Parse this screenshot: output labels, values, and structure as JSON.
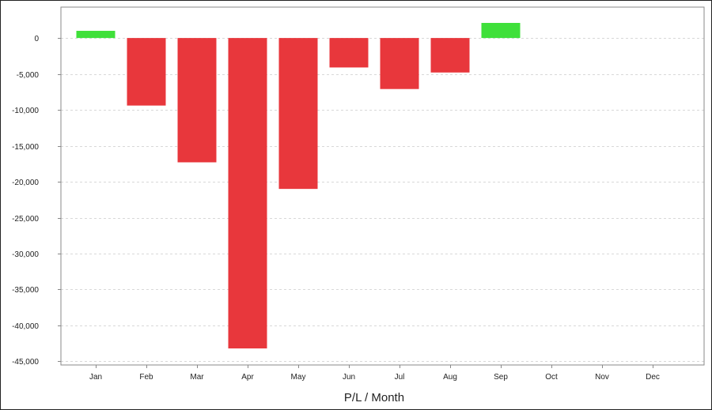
{
  "chart_data": {
    "type": "bar",
    "title": "",
    "xlabel": "P/L / Month",
    "ylabel": "",
    "categories": [
      "Jan",
      "Feb",
      "Mar",
      "Apr",
      "May",
      "Jun",
      "Jul",
      "Aug",
      "Sep",
      "Oct",
      "Nov",
      "Dec"
    ],
    "values": [
      1000,
      -9400,
      -17300,
      -43200,
      -21000,
      -4100,
      -7100,
      -4800,
      2100,
      null,
      null,
      null
    ],
    "ylim": [
      -45500,
      4300
    ],
    "yticks": [
      0,
      -5000,
      -10000,
      -15000,
      -20000,
      -25000,
      -30000,
      -35000,
      -40000,
      -45000
    ],
    "ytick_labels": [
      "0",
      "-5,000",
      "-10,000",
      "-15,000",
      "-20,000",
      "-25,000",
      "-30,000",
      "-35,000",
      "-40,000",
      "-45,000"
    ],
    "grid": true,
    "colors": {
      "positive": "#3fe03a",
      "negative": "#e8373c",
      "grid": "#d8d8d8",
      "axis": "#888888"
    }
  }
}
